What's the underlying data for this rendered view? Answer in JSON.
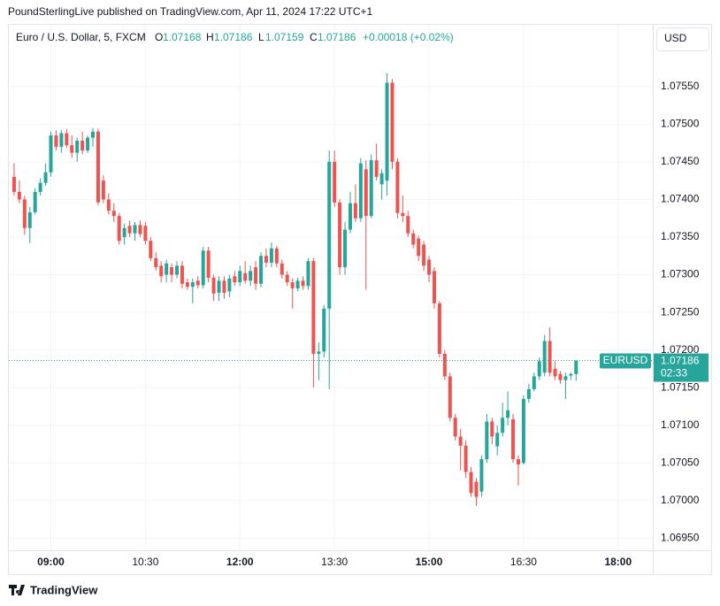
{
  "chart_data": {
    "type": "candlestick",
    "attribution": "PoundSterlingLive published on TradingView.com, Apr 11, 2024 17:22 UTC+1",
    "title": "Euro / U.S. Dollar, 5, FXCM",
    "legend": {
      "open_label": "O",
      "open": 1.07168,
      "high_label": "H",
      "high": 1.07186,
      "low_label": "L",
      "low": 1.07159,
      "close_label": "C",
      "close": 1.07186,
      "change": "+0.00018 (+0.02%)"
    },
    "currency": "USD",
    "symbol": "EURUSD",
    "last_price": 1.07186,
    "countdown": "02:33",
    "footer": "TradingView",
    "up_color": "#26a69a",
    "down_color": "#ef5350",
    "grid": true,
    "x": [
      "08:25",
      "08:30",
      "08:35",
      "08:40",
      "08:45",
      "08:50",
      "08:55",
      "09:00",
      "09:05",
      "09:10",
      "09:15",
      "09:20",
      "09:25",
      "09:30",
      "09:35",
      "09:40",
      "09:45",
      "09:50",
      "09:55",
      "10:00",
      "10:05",
      "10:10",
      "10:15",
      "10:20",
      "10:25",
      "10:30",
      "10:35",
      "10:40",
      "10:45",
      "10:50",
      "10:55",
      "11:00",
      "11:05",
      "11:10",
      "11:15",
      "11:20",
      "11:25",
      "11:30",
      "11:35",
      "11:40",
      "11:45",
      "11:50",
      "11:55",
      "12:00",
      "12:05",
      "12:10",
      "12:15",
      "12:20",
      "12:25",
      "12:30",
      "12:35",
      "12:40",
      "12:45",
      "12:50",
      "12:55",
      "13:00",
      "13:05",
      "13:10",
      "13:15",
      "13:20",
      "13:25",
      "13:30",
      "13:35",
      "13:40",
      "13:45",
      "13:50",
      "13:55",
      "14:00",
      "14:05",
      "14:10",
      "14:15",
      "14:20",
      "14:25",
      "14:30",
      "14:35",
      "14:40",
      "14:45",
      "14:50",
      "14:55",
      "15:00",
      "15:05",
      "15:10",
      "15:15",
      "15:20",
      "15:25",
      "15:30",
      "15:35",
      "15:40",
      "15:45",
      "15:50",
      "15:55",
      "16:00",
      "16:05",
      "16:10",
      "16:15",
      "16:20",
      "16:25",
      "16:30",
      "16:35",
      "16:40",
      "16:45",
      "16:50",
      "16:55",
      "17:00",
      "17:05",
      "17:10",
      "17:15",
      "17:20"
    ],
    "open": [
      1.0743,
      1.0741,
      1.074,
      1.07362,
      1.07383,
      1.0741,
      1.07422,
      1.07436,
      1.07485,
      1.0747,
      1.07488,
      1.07472,
      1.07462,
      1.07478,
      1.07465,
      1.07482,
      1.0749,
      1.07425,
      1.074,
      1.07385,
      1.07378,
      1.0735,
      1.07365,
      1.07355,
      1.07366,
      1.07365,
      1.07345,
      1.07322,
      1.07312,
      1.073,
      1.0731,
      1.073,
      1.07312,
      1.0729,
      1.07284,
      1.07292,
      1.07286,
      1.07332,
      1.07296,
      1.07276,
      1.07292,
      1.07278,
      1.07298,
      1.0729,
      1.07302,
      1.07292,
      1.0731,
      1.07288,
      1.07325,
      1.07316,
      1.07335,
      1.07315,
      1.073,
      1.0729,
      1.07282,
      1.07292,
      1.07285,
      1.07318,
      1.07195,
      1.07198,
      1.07255,
      1.0745,
      1.07396,
      1.0731,
      1.0736,
      1.07395,
      1.07375,
      1.0744,
      1.07378,
      1.07452,
      1.0742,
      1.07425,
      1.07555,
      1.0745,
      1.07382,
      1.07378,
      1.07355,
      1.07348,
      1.0734,
      1.0732,
      1.07305,
      1.07262,
      1.07195,
      1.07165,
      1.0711,
      1.07085,
      1.07073,
      1.07038,
      1.07025,
      1.07012,
      1.07055,
      1.07105,
      1.07072,
      1.0709,
      1.0711,
      1.07108,
      1.07055,
      1.0705,
      1.07135,
      1.07148,
      1.07165,
      1.0717,
      1.07212,
      1.07175,
      1.07168,
      1.0716,
      1.07166,
      1.07168
    ],
    "high": [
      1.07448,
      1.07425,
      1.07405,
      1.0739,
      1.07415,
      1.07428,
      1.07448,
      1.0749,
      1.07492,
      1.07492,
      1.07494,
      1.07485,
      1.07482,
      1.0749,
      1.07485,
      1.07495,
      1.07494,
      1.07432,
      1.07408,
      1.07395,
      1.07382,
      1.07368,
      1.07372,
      1.0737,
      1.07372,
      1.0737,
      1.0735,
      1.0733,
      1.07318,
      1.0732,
      1.07315,
      1.07318,
      1.07318,
      1.07295,
      1.07295,
      1.07298,
      1.07337,
      1.07337,
      1.073,
      1.07298,
      1.07298,
      1.073,
      1.07305,
      1.07312,
      1.07318,
      1.07312,
      1.07318,
      1.0733,
      1.07335,
      1.07343,
      1.07338,
      1.0732,
      1.07305,
      1.07295,
      1.07296,
      1.07298,
      1.07322,
      1.07322,
      1.0721,
      1.0726,
      1.07465,
      1.07465,
      1.074,
      1.0737,
      1.0741,
      1.0742,
      1.07455,
      1.07452,
      1.0746,
      1.07474,
      1.0744,
      1.07568,
      1.0756,
      1.07455,
      1.07405,
      1.07385,
      1.0736,
      1.07352,
      1.07345,
      1.07325,
      1.0731,
      1.07265,
      1.072,
      1.0717,
      1.07115,
      1.07095,
      1.0708,
      1.07045,
      1.0703,
      1.0706,
      1.07115,
      1.0711,
      1.071,
      1.0713,
      1.07145,
      1.07115,
      1.0706,
      1.0714,
      1.07155,
      1.0717,
      1.0719,
      1.0722,
      1.0723,
      1.07185,
      1.07172,
      1.0717,
      1.0717,
      1.07186
    ],
    "low": [
      1.07405,
      1.07395,
      1.07353,
      1.07342,
      1.0738,
      1.07405,
      1.07418,
      1.0743,
      1.07465,
      1.07462,
      1.07468,
      1.07455,
      1.0745,
      1.0746,
      1.07462,
      1.0747,
      1.07392,
      1.07395,
      1.0738,
      1.0737,
      1.0734,
      1.0734,
      1.0735,
      1.07345,
      1.0735,
      1.0734,
      1.07318,
      1.07305,
      1.0729,
      1.0729,
      1.0729,
      1.07295,
      1.07282,
      1.0728,
      1.07262,
      1.07282,
      1.07282,
      1.0729,
      1.07265,
      1.07265,
      1.07268,
      1.0727,
      1.07285,
      1.07285,
      1.07288,
      1.07285,
      1.0728,
      1.07283,
      1.0731,
      1.0731,
      1.0731,
      1.07295,
      1.07285,
      1.07255,
      1.07278,
      1.0728,
      1.0728,
      1.0715,
      1.0716,
      1.0719,
      1.07148,
      1.0739,
      1.073,
      1.073,
      1.07355,
      1.0737,
      1.0737,
      1.0728,
      1.07375,
      1.07425,
      1.074,
      1.07405,
      1.0744,
      1.07375,
      1.0737,
      1.0735,
      1.07335,
      1.07318,
      1.07305,
      1.0729,
      1.07255,
      1.0719,
      1.0716,
      1.07105,
      1.0708,
      1.0704,
      1.0703,
      1.07005,
      1.06993,
      1.07005,
      1.0705,
      1.07075,
      1.0706,
      1.07085,
      1.071,
      1.0705,
      1.0702,
      1.07048,
      1.0713,
      1.07145,
      1.0716,
      1.07165,
      1.07165,
      1.0716,
      1.07155,
      1.07135,
      1.0716,
      1.07159
    ],
    "close": [
      1.0741,
      1.074,
      1.07362,
      1.07383,
      1.0741,
      1.07422,
      1.07436,
      1.07485,
      1.0747,
      1.07488,
      1.07472,
      1.07462,
      1.07478,
      1.07465,
      1.07482,
      1.0749,
      1.07396,
      1.074,
      1.07385,
      1.07378,
      1.07345,
      1.07362,
      1.07355,
      1.07366,
      1.07354,
      1.07345,
      1.07322,
      1.0731,
      1.07298,
      1.07315,
      1.073,
      1.07312,
      1.07288,
      1.07284,
      1.0729,
      1.07286,
      1.07332,
      1.07296,
      1.07275,
      1.07292,
      1.07276,
      1.07295,
      1.0729,
      1.07305,
      1.07292,
      1.07305,
      1.07288,
      1.07325,
      1.07316,
      1.07335,
      1.07315,
      1.073,
      1.0729,
      1.07282,
      1.07292,
      1.07285,
      1.07318,
      1.07195,
      1.07198,
      1.07255,
      1.0745,
      1.07396,
      1.0731,
      1.0736,
      1.07395,
      1.07375,
      1.07448,
      1.07378,
      1.07452,
      1.0743,
      1.07435,
      1.07555,
      1.0745,
      1.07382,
      1.07378,
      1.07355,
      1.0734,
      1.07325,
      1.07312,
      1.073,
      1.07262,
      1.07195,
      1.07165,
      1.0711,
      1.07085,
      1.07073,
      1.07038,
      1.0701,
      1.07005,
      1.07055,
      1.07105,
      1.07085,
      1.0709,
      1.0711,
      1.0712,
      1.07055,
      1.07048,
      1.07135,
      1.07148,
      1.07165,
      1.07185,
      1.07212,
      1.0717,
      1.07165,
      1.0716,
      1.07165,
      1.07168,
      1.07186
    ],
    "xlim": [
      "08:20",
      "18:33"
    ],
    "xticks": [
      "09:00",
      "10:30",
      "12:00",
      "13:30",
      "15:00",
      "16:30",
      "18:00"
    ],
    "ylim": [
      1.06934,
      1.07632
    ],
    "yticks": [
      {
        "value": 1.0695,
        "label": "1.06950"
      },
      {
        "value": 1.07,
        "label": "1.07000"
      },
      {
        "value": 1.0705,
        "label": "1.07050"
      },
      {
        "value": 1.071,
        "label": "1.07100"
      },
      {
        "value": 1.0715,
        "label": "1.07150"
      },
      {
        "value": 1.072,
        "label": "1.07200"
      },
      {
        "value": 1.0725,
        "label": "1.07250"
      },
      {
        "value": 1.073,
        "label": "1.07300"
      },
      {
        "value": 1.0735,
        "label": "1.07350"
      },
      {
        "value": 1.074,
        "label": "1.07400"
      },
      {
        "value": 1.0745,
        "label": "1.07450"
      },
      {
        "value": 1.075,
        "label": "1.07500"
      },
      {
        "value": 1.0755,
        "label": "1.07550"
      }
    ]
  }
}
